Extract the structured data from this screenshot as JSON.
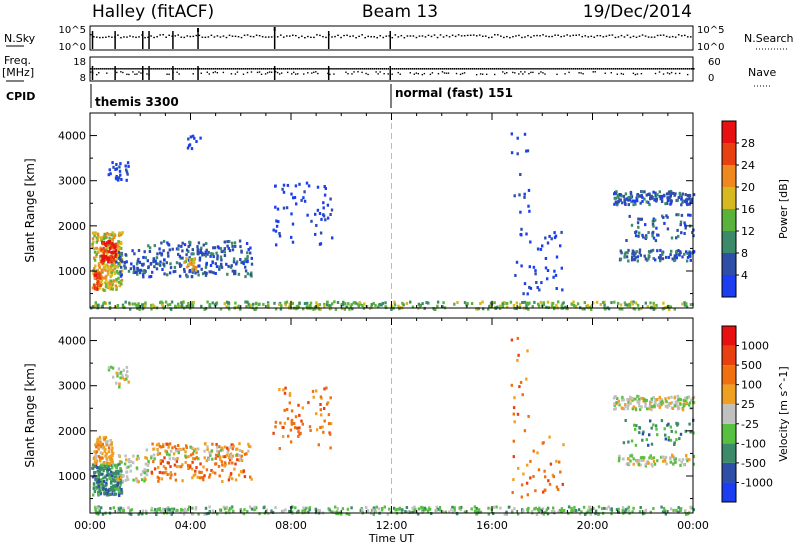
{
  "header": {
    "site": "Halley (fitACF)",
    "beam": "Beam 13",
    "date": "19/Dec/2014"
  },
  "top_panels": {
    "nsky_label": "N.Sky",
    "nsky_ticks": [
      "10^5",
      "10^0"
    ],
    "nsearch_label": "N.Search",
    "nsearch_ticks": [
      "10^5",
      "10^0"
    ],
    "freq_label_1": "Freq.",
    "freq_label_2": "[MHz]",
    "freq_ticks": [
      "18",
      "8"
    ],
    "nave_label": "Nave",
    "nave_ticks": [
      "60",
      "0"
    ],
    "cpid_label": "CPID",
    "cpid_segments": [
      {
        "name": "themis 3300",
        "start_hour": 0
      },
      {
        "name": "normal (fast) 151",
        "start_hour": 12
      }
    ]
  },
  "chart_data": [
    {
      "type": "heatmap",
      "name": "power",
      "ylabel": "Slant Range [km]",
      "xlabel": "",
      "ylim": [
        180,
        4500
      ],
      "xlim": [
        0,
        24
      ],
      "y_ticks": [
        "1000",
        "2000",
        "3000",
        "4000"
      ],
      "colorbar": {
        "label": "Power [dB]",
        "ticks": [
          "4",
          "8",
          "12",
          "16",
          "20",
          "24",
          "28"
        ],
        "colors": [
          "#1a3ef0",
          "#2f4ea8",
          "#3b8a6a",
          "#58b23c",
          "#d8b820",
          "#f08820",
          "#e84010",
          "#e81010"
        ]
      },
      "blobs": [
        {
          "t0": 0.05,
          "t1": 1.25,
          "r0": 600,
          "r1": 1900,
          "v": 4,
          "n": 260
        },
        {
          "t0": 0.4,
          "t1": 1.0,
          "r0": 1200,
          "r1": 1700,
          "v": 7,
          "n": 60
        },
        {
          "t0": 0.1,
          "t1": 0.4,
          "r0": 600,
          "r1": 1000,
          "v": 6,
          "n": 30
        },
        {
          "t0": 1.0,
          "t1": 2.2,
          "r0": 900,
          "r1": 1500,
          "v": 1,
          "n": 60
        },
        {
          "t0": 2.2,
          "t1": 6.4,
          "r0": 900,
          "r1": 1700,
          "v": 1,
          "n": 220
        },
        {
          "t0": 3.7,
          "t1": 4.2,
          "r0": 1050,
          "r1": 1350,
          "v": 4,
          "n": 25
        },
        {
          "t0": 0.7,
          "t1": 1.5,
          "r0": 3000,
          "r1": 3450,
          "v": 0,
          "n": 25
        },
        {
          "t0": 3.8,
          "t1": 4.4,
          "r0": 3700,
          "r1": 4050,
          "v": 0,
          "n": 10
        },
        {
          "t0": 7.2,
          "t1": 9.6,
          "r0": 1600,
          "r1": 3000,
          "v": 0,
          "n": 60
        },
        {
          "t0": 16.7,
          "t1": 17.5,
          "r0": 500,
          "r1": 4200,
          "v": 0,
          "n": 30
        },
        {
          "t0": 17.6,
          "t1": 18.8,
          "r0": 600,
          "r1": 1900,
          "v": 0,
          "n": 30
        },
        {
          "t0": 20.8,
          "t1": 24.0,
          "r0": 2500,
          "r1": 2800,
          "v": 1,
          "n": 150
        },
        {
          "t0": 21.0,
          "t1": 24.0,
          "r0": 1250,
          "r1": 1500,
          "v": 1,
          "n": 90
        },
        {
          "t0": 21.2,
          "t1": 24.0,
          "r0": 1700,
          "r1": 2300,
          "v": 1,
          "n": 60
        },
        {
          "t0": 0.0,
          "t1": 24.0,
          "r0": 180,
          "r1": 350,
          "v": 3,
          "n": 420
        }
      ]
    },
    {
      "type": "heatmap",
      "name": "velocity",
      "ylabel": "Slant Range [km]",
      "xlabel": "Time UT",
      "ylim": [
        180,
        4500
      ],
      "xlim": [
        0,
        24
      ],
      "x_ticks": [
        "00:00",
        "04:00",
        "08:00",
        "12:00",
        "16:00",
        "20:00",
        "00:00"
      ],
      "y_ticks": [
        "1000",
        "2000",
        "3000",
        "4000"
      ],
      "colorbar": {
        "label": "Velocity [m s^-1]",
        "ticks": [
          "1000",
          "500",
          "100",
          "25",
          "-25",
          "-100",
          "-500",
          "-1000"
        ],
        "colors": [
          "#1a3ef0",
          "#2f4ea8",
          "#3b8a6a",
          "#58c040",
          "#c0c0c0",
          "#f0a020",
          "#f07010",
          "#e84010",
          "#e81010"
        ]
      },
      "blobs": [
        {
          "t0": 0.05,
          "t1": 1.25,
          "r0": 600,
          "r1": 1300,
          "v": 2,
          "n": 220
        },
        {
          "t0": 0.1,
          "t1": 0.9,
          "r0": 1300,
          "r1": 1900,
          "v": 5,
          "n": 90
        },
        {
          "t0": 1.0,
          "t1": 2.3,
          "r0": 900,
          "r1": 1500,
          "v": 4,
          "n": 60
        },
        {
          "t0": 2.4,
          "t1": 6.4,
          "r0": 900,
          "r1": 1750,
          "v": 6,
          "n": 170
        },
        {
          "t0": 2.2,
          "t1": 6.4,
          "r0": 1400,
          "r1": 1700,
          "v": 4,
          "n": 60
        },
        {
          "t0": 0.7,
          "t1": 1.5,
          "r0": 3000,
          "r1": 3450,
          "v": 4,
          "n": 25
        },
        {
          "t0": 7.2,
          "t1": 9.6,
          "r0": 1600,
          "r1": 3000,
          "v": 6,
          "n": 70
        },
        {
          "t0": 16.7,
          "t1": 17.5,
          "r0": 500,
          "r1": 4200,
          "v": 6,
          "n": 30
        },
        {
          "t0": 17.6,
          "t1": 18.8,
          "r0": 600,
          "r1": 1900,
          "v": 6,
          "n": 25
        },
        {
          "t0": 20.8,
          "t1": 24.0,
          "r0": 2500,
          "r1": 2800,
          "v": 4,
          "n": 150
        },
        {
          "t0": 21.0,
          "t1": 24.0,
          "r0": 1250,
          "r1": 1500,
          "v": 4,
          "n": 80
        },
        {
          "t0": 21.2,
          "t1": 24.0,
          "r0": 1700,
          "r1": 2300,
          "v": 2,
          "n": 50
        },
        {
          "t0": 0.0,
          "t1": 24.0,
          "r0": 180,
          "r1": 350,
          "v": 3,
          "n": 420
        }
      ]
    }
  ]
}
